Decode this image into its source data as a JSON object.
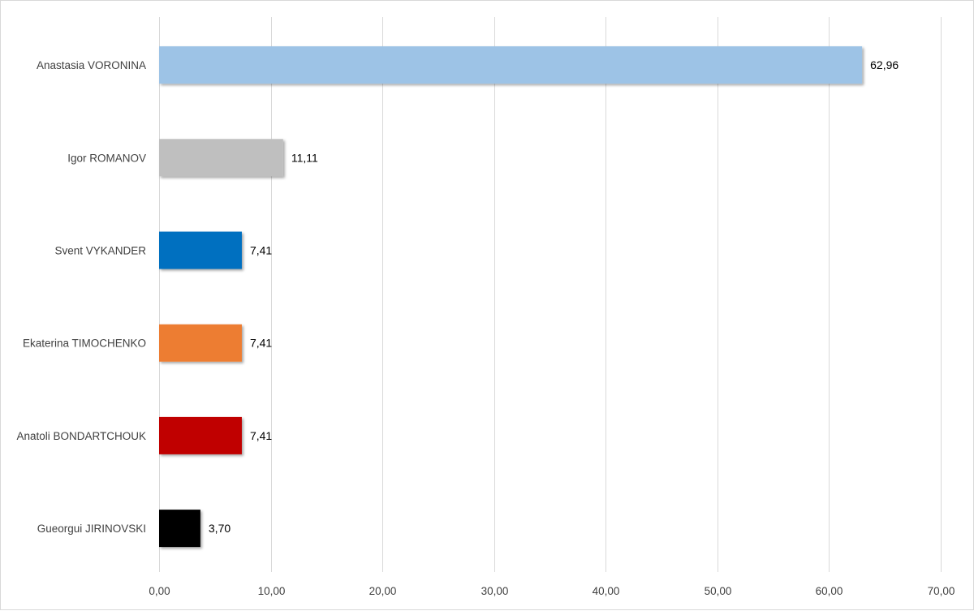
{
  "chart_data": {
    "type": "bar",
    "orientation": "horizontal",
    "categories": [
      "Anastasia VORONINA",
      "Igor ROMANOV",
      "Svent VYKANDER",
      "Ekaterina TIMOCHENKO",
      "Anatoli BONDARTCHOUK",
      "Gueorgui JIRINOVSKI"
    ],
    "values": [
      62.96,
      11.11,
      7.41,
      7.41,
      7.41,
      3.7
    ],
    "value_labels": [
      "62,96",
      "11,11",
      "7,41",
      "7,41",
      "7,41",
      "3,70"
    ],
    "colors": [
      "#9dc3e6",
      "#bfbfbf",
      "#0070c0",
      "#ed7d31",
      "#c00000",
      "#000000"
    ],
    "xlim": [
      0,
      70
    ],
    "x_ticks": [
      0,
      10,
      20,
      30,
      40,
      50,
      60,
      70
    ],
    "x_tick_labels": [
      "0,00",
      "10,00",
      "20,00",
      "30,00",
      "40,00",
      "50,00",
      "60,00",
      "70,00"
    ],
    "grid": true,
    "gridline_color": "#d9d9d9",
    "title": "",
    "xlabel": "",
    "ylabel": ""
  }
}
